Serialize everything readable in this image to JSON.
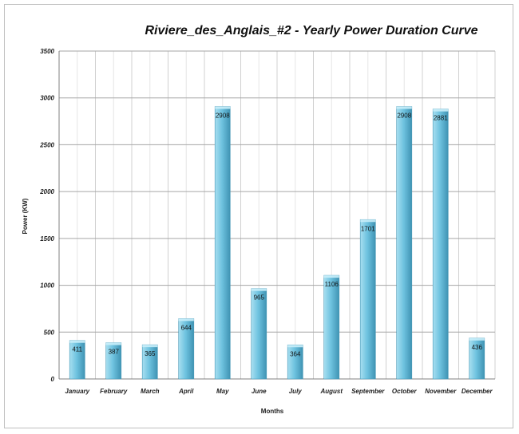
{
  "chart_data": {
    "type": "bar",
    "title": "Riviere_des_Anglais_#2 - Yearly Power Duration Curve",
    "xlabel": "Months",
    "ylabel": "Power (KW)",
    "ylim": [
      0,
      3500
    ],
    "yticks": [
      0,
      500,
      1000,
      1500,
      2000,
      2500,
      3000,
      3500
    ],
    "categories": [
      "January",
      "February",
      "March",
      "April",
      "May",
      "June",
      "July",
      "August",
      "September",
      "October",
      "November",
      "December"
    ],
    "values": [
      411,
      387,
      365,
      644,
      2908,
      965,
      364,
      1106,
      1701,
      2908,
      2881,
      436
    ],
    "grid": true,
    "legend": "none",
    "colors": {
      "bar_light": "#a8dff0",
      "bar_mid": "#6fc3e0",
      "bar_dark": "#3f93b3",
      "grid": "#d0d0d0",
      "grid_major": "#a6a6a6"
    }
  }
}
